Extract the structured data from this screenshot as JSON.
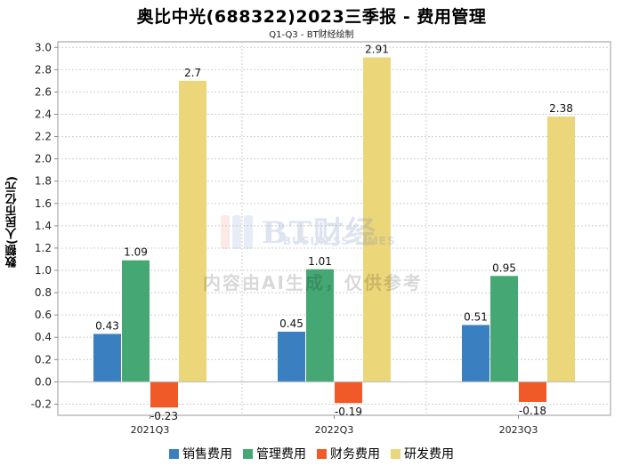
{
  "chart_data": {
    "type": "bar",
    "title": "奥比中光(688322)2023三季报 - 费用管理",
    "subtitle": "Q1-Q3 - BT财经绘制",
    "xlabel": "",
    "ylabel": "数额(人民币亿元)",
    "categories": [
      "2021Q3",
      "2022Q3",
      "2023Q3"
    ],
    "series": [
      {
        "name": "销售费用",
        "values": [
          0.43,
          0.45,
          0.51
        ],
        "color": "#3a80c0"
      },
      {
        "name": "管理费用",
        "values": [
          1.09,
          1.01,
          0.95
        ],
        "color": "#45a874"
      },
      {
        "name": "财务费用",
        "values": [
          -0.23,
          -0.19,
          -0.18
        ],
        "color": "#f05a28"
      },
      {
        "name": "研发费用",
        "values": [
          2.7,
          2.91,
          2.38
        ],
        "color": "#ecd67a"
      }
    ],
    "data_labels": [
      [
        "0.43",
        "0.45",
        "0.51"
      ],
      [
        "1.09",
        "1.01",
        "0.95"
      ],
      [
        "-0.23",
        "-0.19",
        "-0.18"
      ],
      [
        "2.7",
        "2.91",
        "2.38"
      ]
    ],
    "ylim": [
      -0.3,
      3.05
    ],
    "yticks": [
      -0.2,
      0.0,
      0.2,
      0.4,
      0.6,
      0.8,
      1.0,
      1.2,
      1.4,
      1.6,
      1.8,
      2.0,
      2.2,
      2.4,
      2.6,
      2.8,
      3.0
    ],
    "ytick_labels": [
      "-0.2",
      "0.0",
      "0.2",
      "0.4",
      "0.6",
      "0.8",
      "1.0",
      "1.2",
      "1.4",
      "1.6",
      "1.8",
      "2.0",
      "2.2",
      "2.4",
      "2.6",
      "2.8",
      "3.0"
    ],
    "grid": true,
    "legend_position": "bottom"
  },
  "watermark": {
    "logo_text": "BT财经",
    "logo_subtext": "BUSINESS TIMES",
    "notice": "内容由AI生成，仅供参考"
  }
}
